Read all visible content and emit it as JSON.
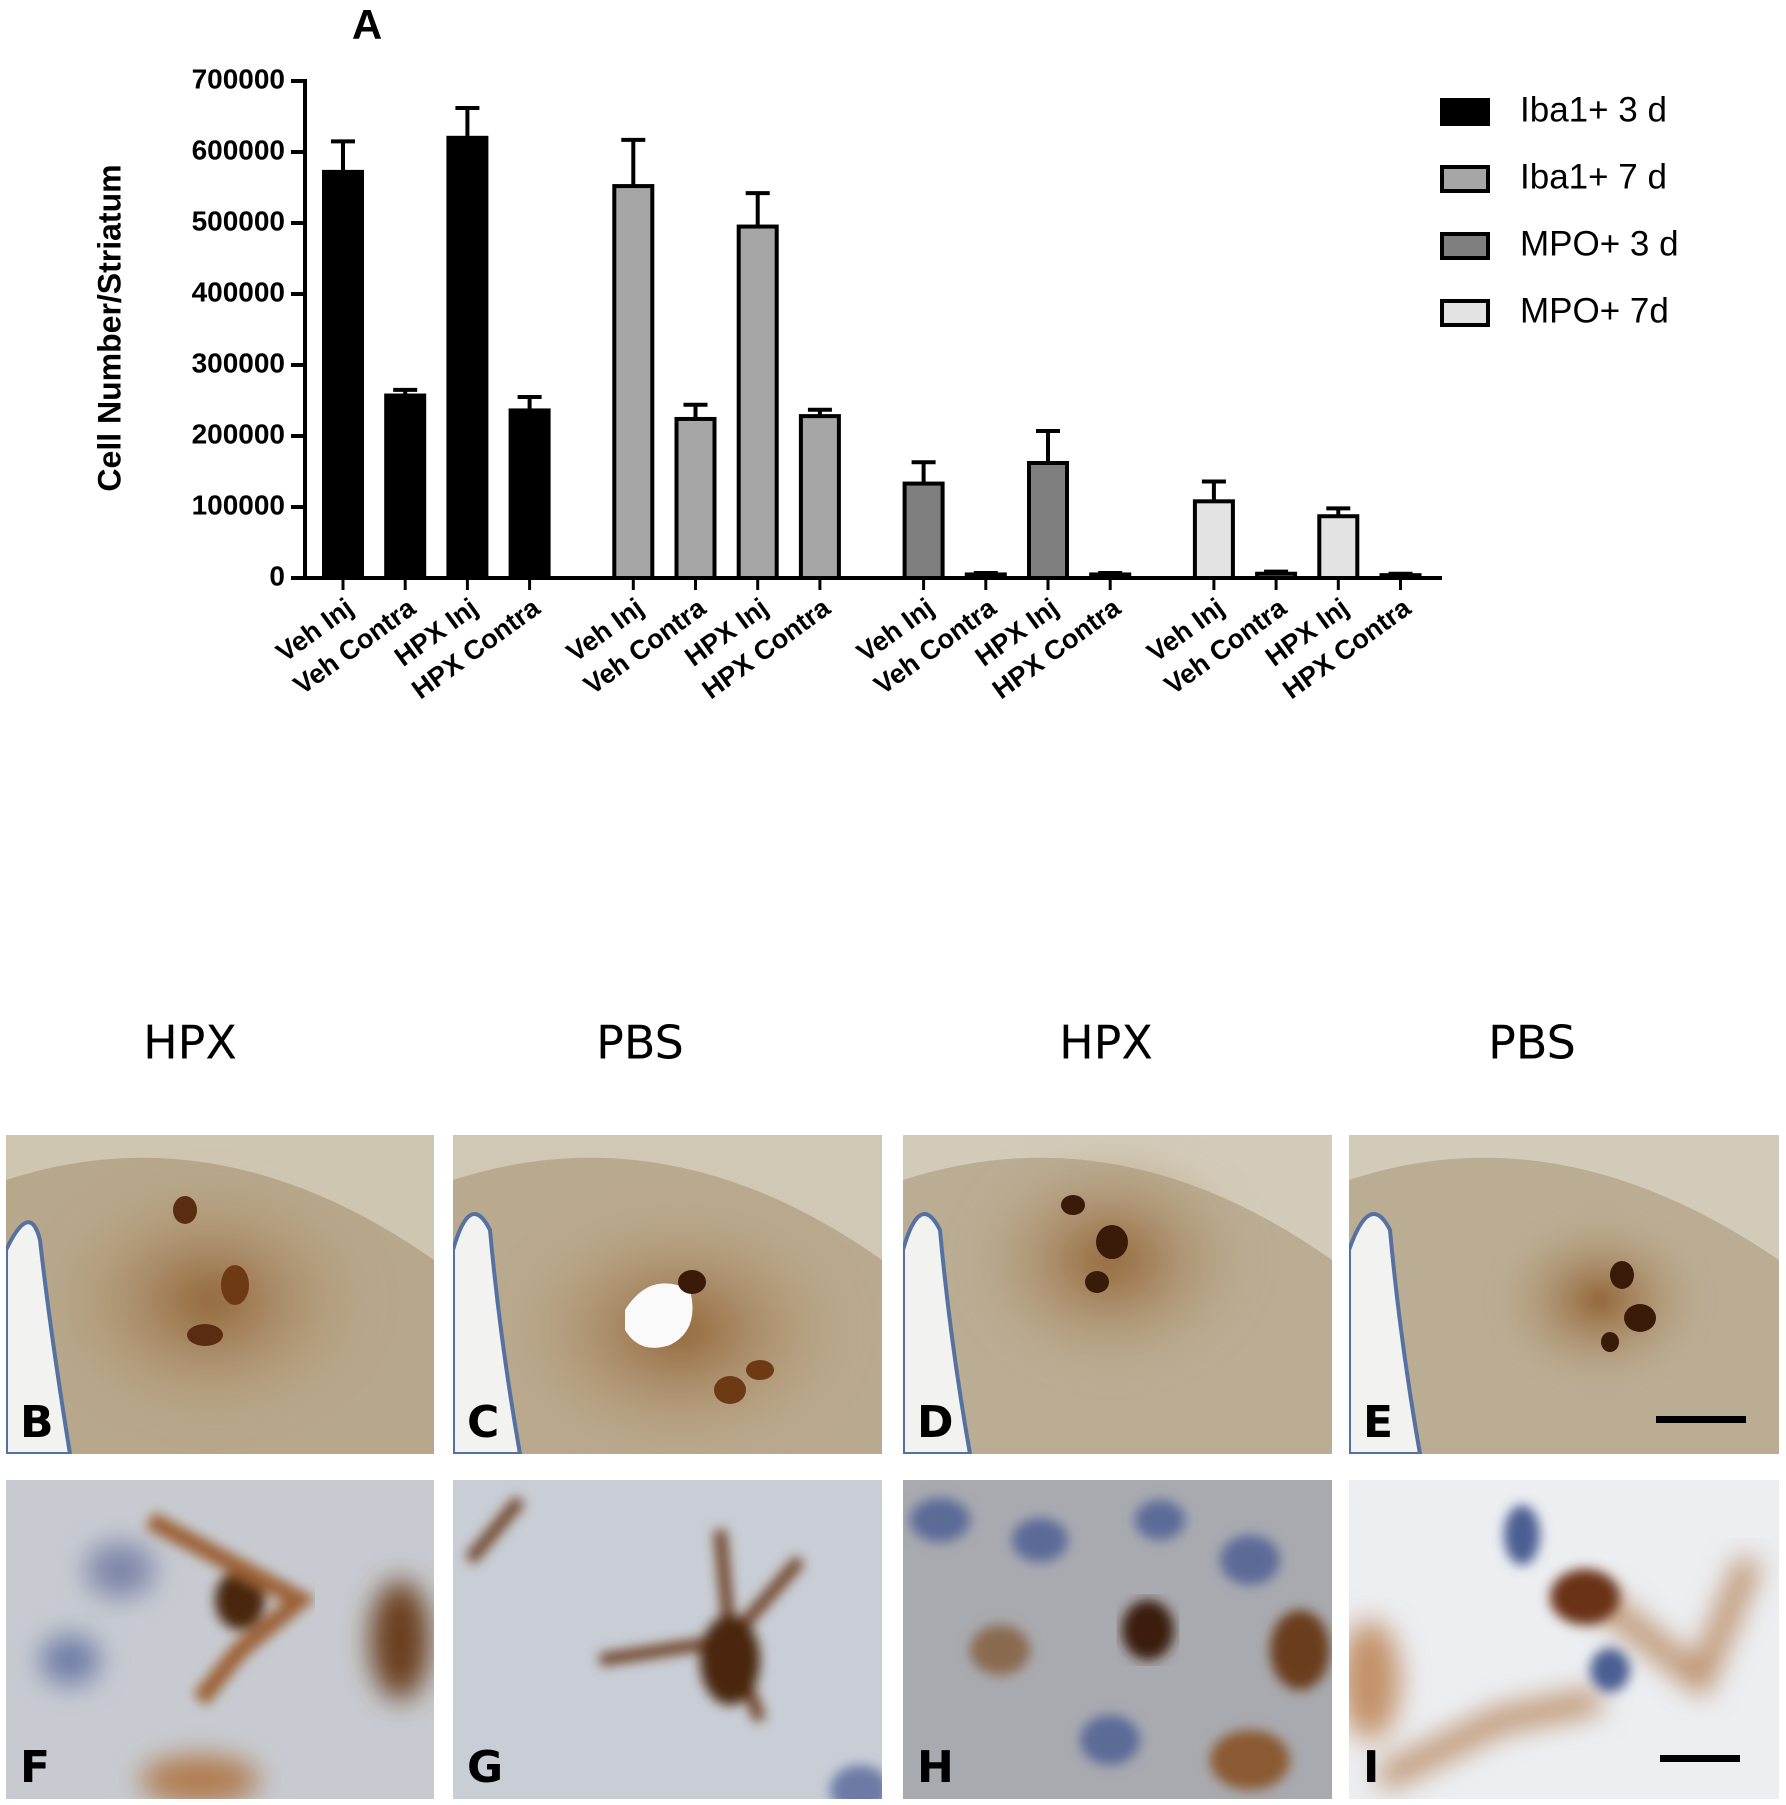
{
  "chart_data": {
    "type": "bar",
    "title": "A",
    "y_label": "Cell Number/Striatum",
    "categories": [
      "Veh Inj",
      "Veh Contra",
      "HPX Inj",
      "HPX Contra"
    ],
    "series": [
      {
        "name": "Iba1+ 3 d",
        "color": "#000000",
        "values": [
          572000,
          257000,
          620000,
          236000
        ],
        "errors": [
          43000,
          8000,
          42000,
          19000
        ]
      },
      {
        "name": "Iba1+ 7 d",
        "color": "#a6a6a6",
        "values": [
          552000,
          224000,
          495000,
          228000
        ],
        "errors": [
          65000,
          20000,
          47000,
          9000
        ]
      },
      {
        "name": "MPO+ 3 d",
        "color": "#7f7f7f",
        "values": [
          133000,
          5000,
          162000,
          5000
        ],
        "errors": [
          30000,
          2000,
          45000,
          2000
        ]
      },
      {
        "name": "MPO+ 7d",
        "color": "#e3e3e3",
        "values": [
          108000,
          6000,
          87000,
          4000
        ],
        "errors": [
          28000,
          3000,
          11000,
          2000
        ]
      }
    ],
    "ylim": [
      0,
      700000
    ],
    "yticks": [
      0,
      100000,
      200000,
      300000,
      400000,
      500000,
      600000,
      700000
    ],
    "legend": "top-right"
  },
  "panels": {
    "columns": [
      "HPX",
      "PBS",
      "HPX",
      "PBS"
    ],
    "letters": [
      "B",
      "C",
      "D",
      "E",
      "F",
      "G",
      "H",
      "I"
    ]
  }
}
